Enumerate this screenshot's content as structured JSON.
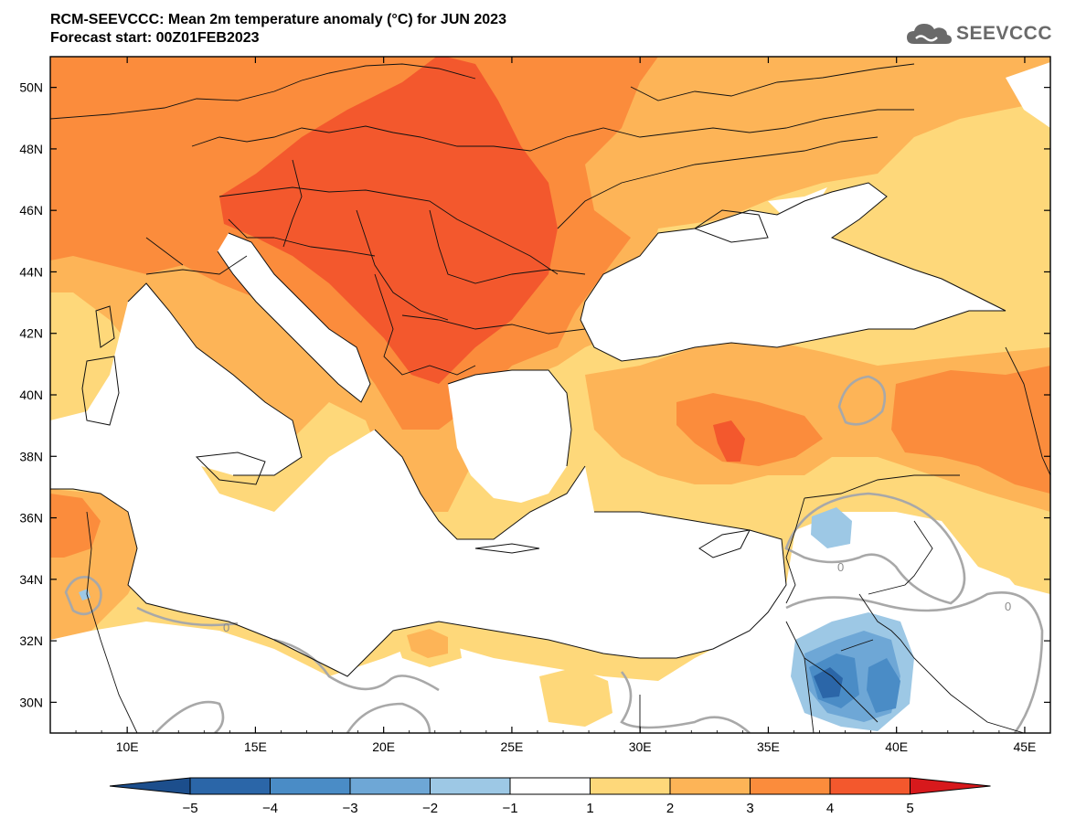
{
  "title": {
    "line1": "RCM-SEEVCCC: Mean 2m temperature anomaly (°C) for JUN 2023",
    "line2": "Forecast start: 00Z01FEB2023"
  },
  "logo": {
    "text": "SEEVCCC",
    "icon": "cloud-icon"
  },
  "map": {
    "lon_range": [
      7,
      46
    ],
    "lat_range": [
      29,
      51
    ],
    "lat_ticks": [
      {
        "value": 50,
        "label": "50N"
      },
      {
        "value": 48,
        "label": "48N"
      },
      {
        "value": 46,
        "label": "46N"
      },
      {
        "value": 44,
        "label": "44N"
      },
      {
        "value": 42,
        "label": "42N"
      },
      {
        "value": 40,
        "label": "40N"
      },
      {
        "value": 38,
        "label": "38N"
      },
      {
        "value": 36,
        "label": "36N"
      },
      {
        "value": 34,
        "label": "34N"
      },
      {
        "value": 32,
        "label": "32N"
      },
      {
        "value": 30,
        "label": "30N"
      }
    ],
    "lon_ticks": [
      {
        "value": 10,
        "label": "10E"
      },
      {
        "value": 15,
        "label": "15E"
      },
      {
        "value": 20,
        "label": "20E"
      },
      {
        "value": 25,
        "label": "25E"
      },
      {
        "value": 30,
        "label": "30E"
      },
      {
        "value": 35,
        "label": "35E"
      },
      {
        "value": 40,
        "label": "40E"
      },
      {
        "value": 45,
        "label": "45E"
      }
    ],
    "contour_label": "0"
  },
  "colorbar": {
    "labels": [
      "−5",
      "−4",
      "−3",
      "−2",
      "−1",
      "1",
      "2",
      "3",
      "4",
      "5"
    ],
    "colors": [
      "#2b66a8",
      "#4a8cc6",
      "#6ea7d6",
      "#9dc8e5",
      "#ffffff",
      "#fed87a",
      "#fdb457",
      "#fb8c3c",
      "#f3582d"
    ],
    "under_color": "#1c4e8c",
    "over_color": "#d7191c"
  }
}
